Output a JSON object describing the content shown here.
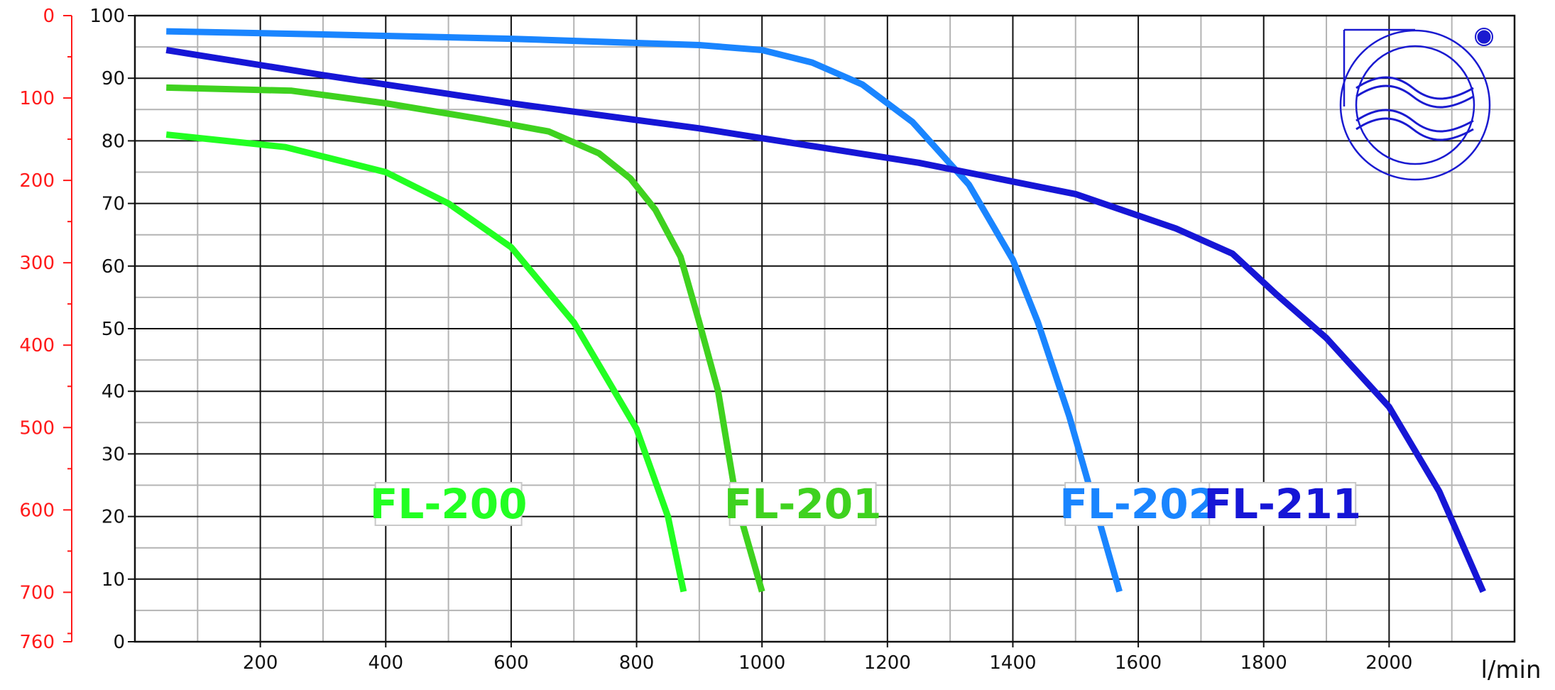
{
  "chart_data": {
    "type": "line",
    "title": "",
    "xlabel": "l/min",
    "ylabel": "",
    "xlim": [
      0,
      2200
    ],
    "ylim": [
      0,
      100
    ],
    "grid": true,
    "x_ticks": [
      "200",
      "400",
      "600",
      "800",
      "1000",
      "1200",
      "1400",
      "1600",
      "1800",
      "2000"
    ],
    "y_ticks": [
      "0",
      "10",
      "20",
      "30",
      "40",
      "50",
      "60",
      "70",
      "80",
      "90",
      "100"
    ],
    "secondary_axis": {
      "ticks": [
        "0",
        "100",
        "200",
        "300",
        "400",
        "500",
        "600",
        "700",
        "760"
      ],
      "color": "#ff1a1a"
    },
    "series": [
      {
        "name": "FL-200",
        "color": "#22ff22",
        "points": [
          [
            50,
            81
          ],
          [
            240,
            79
          ],
          [
            400,
            75
          ],
          [
            500,
            70
          ],
          [
            600,
            63
          ],
          [
            700,
            51
          ],
          [
            800,
            34
          ],
          [
            850,
            20
          ],
          [
            875,
            8
          ]
        ]
      },
      {
        "name": "FL-201",
        "color": "#3fd21f",
        "points": [
          [
            50,
            88.5
          ],
          [
            250,
            88
          ],
          [
            400,
            86
          ],
          [
            550,
            83.5
          ],
          [
            660,
            81.5
          ],
          [
            740,
            78
          ],
          [
            790,
            74
          ],
          [
            830,
            69
          ],
          [
            870,
            61.5
          ],
          [
            900,
            51
          ],
          [
            930,
            40
          ],
          [
            960,
            22
          ],
          [
            1000,
            8
          ]
        ]
      },
      {
        "name": "FL-202",
        "color": "#1a85ff",
        "points": [
          [
            50,
            97.5
          ],
          [
            300,
            97
          ],
          [
            600,
            96.3
          ],
          [
            900,
            95.3
          ],
          [
            1000,
            94.5
          ],
          [
            1080,
            92.5
          ],
          [
            1160,
            89
          ],
          [
            1240,
            83
          ],
          [
            1330,
            73
          ],
          [
            1400,
            61
          ],
          [
            1440,
            51
          ],
          [
            1490,
            36
          ],
          [
            1530,
            22
          ],
          [
            1570,
            8
          ]
        ]
      },
      {
        "name": "FL-211",
        "color": "#1616d6",
        "points": [
          [
            50,
            94.5
          ],
          [
            300,
            90.5
          ],
          [
            600,
            86
          ],
          [
            900,
            82
          ],
          [
            1250,
            76.5
          ],
          [
            1500,
            71.5
          ],
          [
            1660,
            66
          ],
          [
            1750,
            62
          ],
          [
            1820,
            55.5
          ],
          [
            1900,
            48.5
          ],
          [
            2000,
            37.5
          ],
          [
            2080,
            24
          ],
          [
            2150,
            8
          ]
        ]
      }
    ]
  }
}
